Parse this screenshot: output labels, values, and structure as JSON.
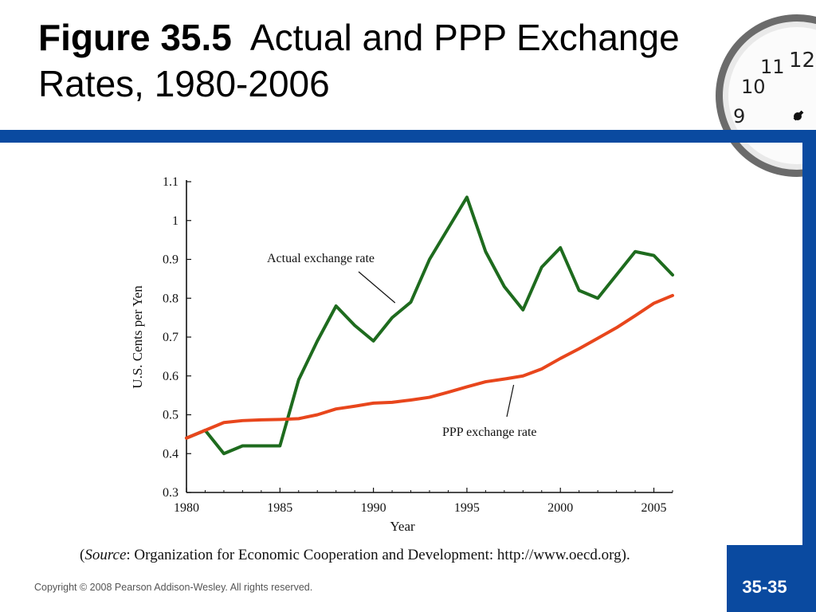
{
  "slide": {
    "title_bold": "Figure 35.5",
    "title_rest": "Actual and PPP Exchange Rates, 1980-2006",
    "source_prefix": "(",
    "source_italic": "Source",
    "source_rest": ": Organization for Economic Cooperation and Development: http://www.oecd.org).",
    "copyright": "Copyright © 2008 Pearson Addison-Wesley. All rights reserved.",
    "page_number": "35-35",
    "clock_numerals": [
      "12",
      "11",
      "10",
      "9"
    ]
  },
  "colors": {
    "brand_blue": "#0a4aa0",
    "actual_series": "#1e6b1e",
    "ppp_series": "#e8461c"
  },
  "chart_data": {
    "type": "line",
    "xlabel": "Year",
    "ylabel": "U.S. Cents per Yen",
    "xlim": [
      1980,
      2006
    ],
    "ylim": [
      0.3,
      1.1
    ],
    "x_ticks": [
      1980,
      1985,
      1990,
      1995,
      2000,
      2005
    ],
    "x_tick_labels": [
      "1980",
      "1985",
      "1990",
      "1995",
      "2000",
      "2005"
    ],
    "y_ticks": [
      0.3,
      0.4,
      0.5,
      0.6,
      0.7,
      0.8,
      0.9,
      1.0,
      1.1
    ],
    "y_tick_labels": [
      "0.3",
      "0.4",
      "0.5",
      "0.6",
      "0.7",
      "0.8",
      "0.9",
      "1",
      "1.1"
    ],
    "grid": false,
    "x": [
      1980,
      1981,
      1982,
      1983,
      1984,
      1985,
      1986,
      1987,
      1988,
      1989,
      1990,
      1991,
      1992,
      1993,
      1994,
      1995,
      1996,
      1997,
      1998,
      1999,
      2000,
      2001,
      2002,
      2003,
      2004,
      2005,
      2006
    ],
    "series": [
      {
        "name": "Actual exchange rate",
        "values": [
          0.44,
          0.46,
          0.4,
          0.42,
          0.42,
          0.42,
          0.59,
          0.69,
          0.78,
          0.73,
          0.69,
          0.75,
          0.79,
          0.9,
          0.98,
          1.06,
          0.92,
          0.83,
          0.77,
          0.88,
          0.93,
          0.82,
          0.8,
          0.86,
          0.92,
          0.91,
          0.86
        ]
      },
      {
        "name": "PPP exchange rate",
        "values": [
          0.44,
          0.46,
          0.48,
          0.485,
          0.487,
          0.488,
          0.49,
          0.5,
          0.515,
          0.522,
          0.53,
          0.532,
          0.538,
          0.545,
          0.558,
          0.572,
          0.585,
          0.592,
          0.6,
          0.618,
          0.645,
          0.67,
          0.697,
          0.724,
          0.755,
          0.787,
          0.807
        ]
      }
    ],
    "annotations": [
      {
        "text": "Actual exchange rate",
        "series": 0,
        "points_to_x": 1991.2
      },
      {
        "text": "PPP exchange rate",
        "series": 1,
        "points_to_x": 1997.5
      }
    ]
  }
}
